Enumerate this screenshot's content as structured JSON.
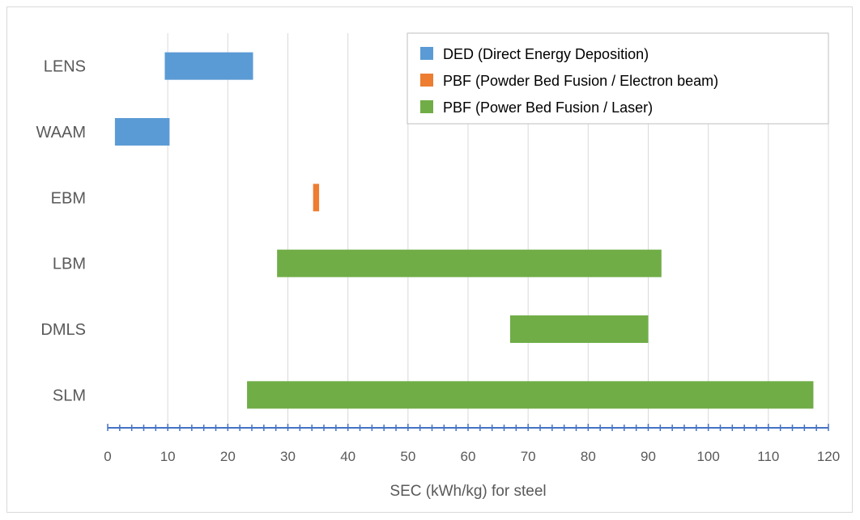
{
  "chart_data": {
    "type": "bar",
    "orientation": "horizontal-range",
    "categories": [
      "LENS",
      "WAAM",
      "EBM",
      "LBM",
      "DMLS",
      "SLM"
    ],
    "series": [
      {
        "name": "DED (Direct Energy Deposition)",
        "color": "#5b9bd5",
        "ranges": {
          "LENS": [
            9.5,
            24.2
          ],
          "WAAM": [
            1.2,
            10.3
          ]
        }
      },
      {
        "name": "PBF (Powder Bed Fusion / Electron beam)",
        "color": "#ed7d31",
        "ranges": {
          "EBM": [
            34.2,
            35.2
          ]
        }
      },
      {
        "name": "PBF (Power Bed Fusion / Laser)",
        "color": "#70ad47",
        "ranges": {
          "LBM": [
            28.2,
            92.2
          ],
          "DMLS": [
            67,
            90
          ],
          "SLM": [
            23.2,
            117.5
          ]
        }
      }
    ],
    "xlabel": "SEC (kWh/kg) for steel",
    "ylabel": "",
    "xlim": [
      0,
      120
    ],
    "xticks": [
      "0",
      "10",
      "20",
      "30",
      "40",
      "50",
      "60",
      "70",
      "80",
      "90",
      "100",
      "110",
      "120"
    ],
    "grid": "vertical",
    "legend_position": "top-right",
    "colors": {
      "axis": "#4472c4",
      "grid": "#d9d9d9",
      "text": "#595959"
    }
  }
}
